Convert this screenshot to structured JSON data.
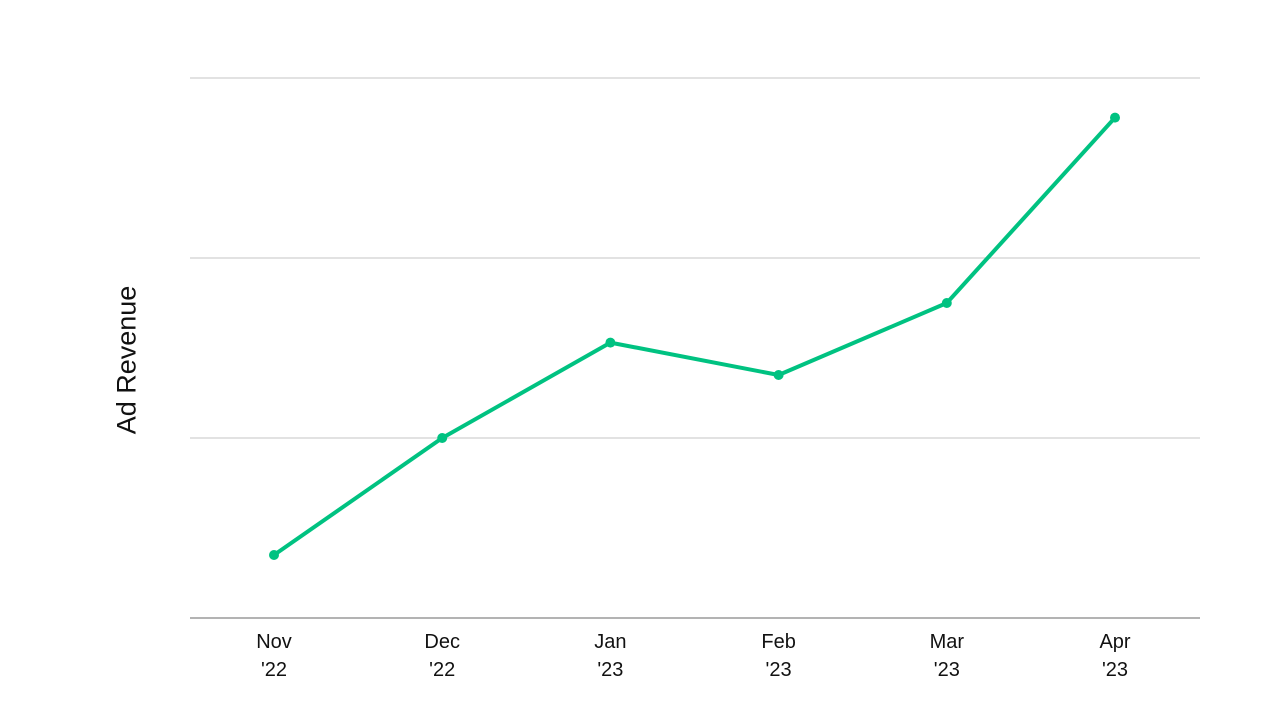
{
  "chart_data": {
    "type": "line",
    "title": "",
    "xlabel": "",
    "ylabel": "Ad Revenue",
    "categories": [
      [
        "Nov",
        "'22"
      ],
      [
        "Dec",
        "'22"
      ],
      [
        "Jan",
        "'23"
      ],
      [
        "Feb",
        "'23"
      ],
      [
        "Mar",
        "'23"
      ],
      [
        "Apr",
        "'23"
      ]
    ],
    "series": [
      {
        "values": [
          0.35,
          1.0,
          1.53,
          1.35,
          1.75,
          2.78
        ]
      }
    ],
    "ylim": [
      0,
      3
    ],
    "y_gridlines": [
      1,
      2,
      3
    ],
    "y_tick_labels_shown": false,
    "grid": true,
    "legend": "none",
    "colors": {
      "line": "#00c281",
      "grid": "#d0d0d0",
      "axis": "#9a9a9a",
      "text": "#111111"
    }
  }
}
